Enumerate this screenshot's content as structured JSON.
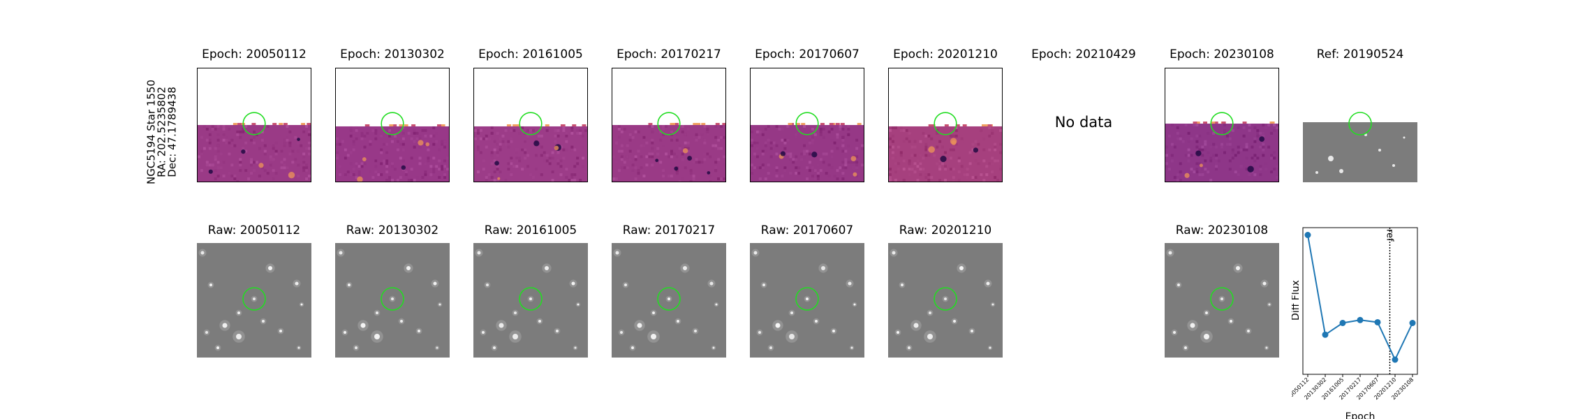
{
  "side_label": {
    "line1": "NGC5194 Star 1550",
    "line2": "RA: 202.5235802",
    "line3": "Dec: 47.1789438"
  },
  "difference_panels": [
    {
      "title": "Epoch: 20050112",
      "has_data": true
    },
    {
      "title": "Epoch: 20130302",
      "has_data": true
    },
    {
      "title": "Epoch: 20161005",
      "has_data": true
    },
    {
      "title": "Epoch: 20170217",
      "has_data": true
    },
    {
      "title": "Epoch: 20170607",
      "has_data": true
    },
    {
      "title": "Epoch: 20201210",
      "has_data": true
    },
    {
      "title": "Epoch: 20210429",
      "has_data": false,
      "message": "No data"
    },
    {
      "title": "Epoch: 20230108",
      "has_data": true
    }
  ],
  "reference_panel": {
    "title": "Ref: 20190524"
  },
  "raw_panels": [
    {
      "title": "Raw: 20050112"
    },
    {
      "title": "Raw: 20130302"
    },
    {
      "title": "Raw: 20161005"
    },
    {
      "title": "Raw: 20170217"
    },
    {
      "title": "Raw: 20170607"
    },
    {
      "title": "Raw: 20201210"
    },
    {
      "title": "Raw: 20230108"
    }
  ],
  "colors": {
    "marker_circle": "#22dd22",
    "diff_colormap_mid": "#9a3a86",
    "raw_background": "#7c7c7c",
    "series_line": "#1f77b4"
  },
  "chart_data": {
    "type": "line",
    "title": "",
    "xlabel": "Epoch",
    "ylabel": "Diff Flux",
    "categories": [
      "20050112",
      "20130302",
      "20161005",
      "20170217",
      "20170607",
      "20201210",
      "20230108"
    ],
    "series": [
      {
        "values": [
          0.95,
          0.27,
          0.35,
          0.37,
          0.355,
          0.1,
          0.35
        ]
      }
    ],
    "ylim": [
      0,
      1
    ],
    "yticks_shown": false,
    "grid": false,
    "legend": "none",
    "reference_line": {
      "position_between": [
        "20170607",
        "20201210"
      ],
      "label": "ref",
      "style": "dotted"
    }
  }
}
